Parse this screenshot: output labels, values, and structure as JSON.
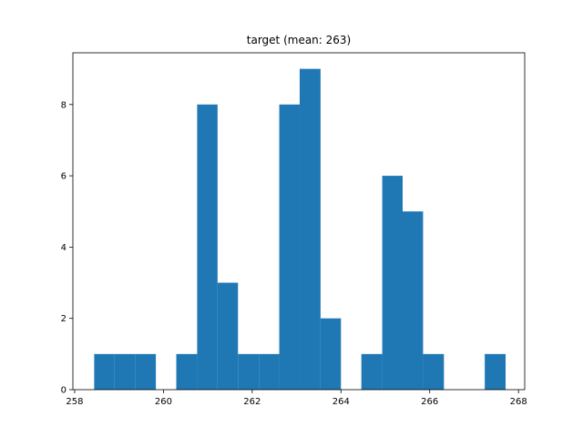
{
  "chart_data": {
    "type": "bar",
    "title": "target (mean: 263)",
    "xlabel": "",
    "ylabel": "",
    "xlim": [
      257.96,
      268.14
    ],
    "ylim": [
      0,
      9.45
    ],
    "grid": false,
    "bar_color": "#1f77b4",
    "bins": [
      {
        "x0": 258.44,
        "x1": 258.9,
        "count": 1
      },
      {
        "x0": 258.9,
        "x1": 259.37,
        "count": 1
      },
      {
        "x0": 259.37,
        "x1": 259.83,
        "count": 1
      },
      {
        "x0": 259.83,
        "x1": 260.29,
        "count": 0
      },
      {
        "x0": 260.29,
        "x1": 260.76,
        "count": 1
      },
      {
        "x0": 260.76,
        "x1": 261.22,
        "count": 8
      },
      {
        "x0": 261.22,
        "x1": 261.68,
        "count": 3
      },
      {
        "x0": 261.68,
        "x1": 262.15,
        "count": 1
      },
      {
        "x0": 262.15,
        "x1": 262.61,
        "count": 1
      },
      {
        "x0": 262.61,
        "x1": 263.07,
        "count": 8
      },
      {
        "x0": 263.07,
        "x1": 263.54,
        "count": 9
      },
      {
        "x0": 263.54,
        "x1": 264.0,
        "count": 2
      },
      {
        "x0": 264.0,
        "x1": 264.46,
        "count": 0
      },
      {
        "x0": 264.46,
        "x1": 264.93,
        "count": 1
      },
      {
        "x0": 264.93,
        "x1": 265.39,
        "count": 6
      },
      {
        "x0": 265.39,
        "x1": 265.85,
        "count": 5
      },
      {
        "x0": 265.85,
        "x1": 266.32,
        "count": 1
      },
      {
        "x0": 266.32,
        "x1": 266.78,
        "count": 0
      },
      {
        "x0": 266.78,
        "x1": 267.24,
        "count": 0
      },
      {
        "x0": 267.24,
        "x1": 267.71,
        "count": 1
      }
    ],
    "xticks": [
      258,
      260,
      262,
      264,
      266,
      268
    ],
    "xtick_labels": [
      "258",
      "260",
      "262",
      "264",
      "266",
      "268"
    ],
    "yticks": [
      0,
      2,
      4,
      6,
      8
    ],
    "ytick_labels": [
      "0",
      "2",
      "4",
      "6",
      "8"
    ]
  }
}
